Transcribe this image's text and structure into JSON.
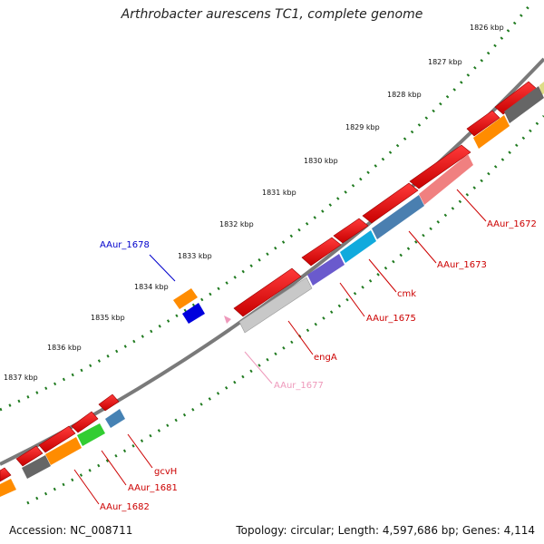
{
  "title": "Arthrobacter aurescens TC1, complete genome",
  "footer": {
    "accession": "Accession: NC_008711",
    "summary": "Topology: circular; Length: 4,597,686 bp; Genes: 4,114"
  },
  "colors": {
    "red_gene": "#ee0000",
    "blue_gene": "#0000dd",
    "backbone": "#888888",
    "tick_ring": "#1f7a1f",
    "label_red": "#cc0000",
    "label_pink": "#ee99bb",
    "label_blue": "#0000cc"
  },
  "ticks": [
    "1826 kbp",
    "1827 kbp",
    "1828 kbp",
    "1829 kbp",
    "1830 kbp",
    "1831 kbp",
    "1832 kbp",
    "1833 kbp",
    "1834 kbp",
    "1835 kbp",
    "1836 kbp",
    "1837 kbp"
  ],
  "labels": {
    "aaur_1672": "AAur_1672",
    "aaur_1673": "AAur_1673",
    "cmk": "cmk",
    "aaur_1675": "AAur_1675",
    "enga": "engA",
    "aaur_1677": "AAur_1677",
    "aaur_1678": "AAur_1678",
    "gcvh": "gcvH",
    "aaur_1681": "AAur_1681",
    "aaur_1682": "AAur_1682"
  }
}
